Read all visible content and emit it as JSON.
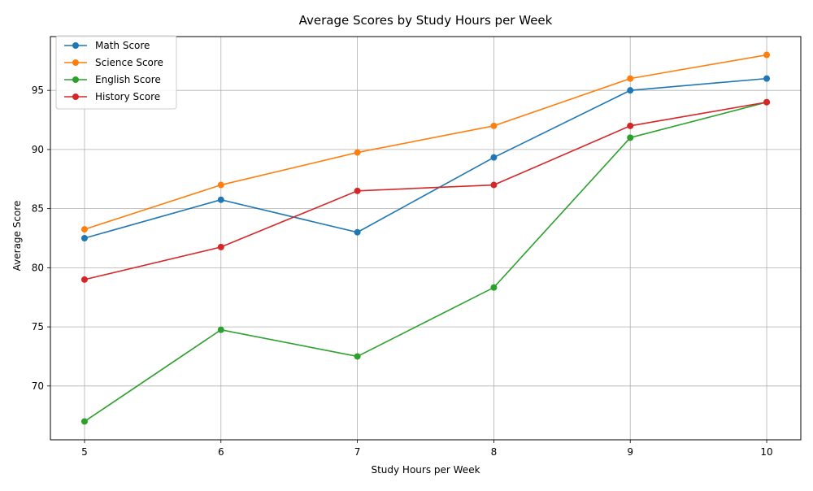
{
  "chart_data": {
    "type": "line",
    "title": "Average Scores by Study Hours per Week",
    "xlabel": "Study Hours per Week",
    "ylabel": "Average Score",
    "x": [
      5,
      6,
      7,
      8,
      9,
      10
    ],
    "xlim": [
      4.75,
      10.25
    ],
    "ylim": [
      65.45,
      99.55
    ],
    "xticks": [
      5,
      6,
      7,
      8,
      9,
      10
    ],
    "yticks": [
      70,
      75,
      80,
      85,
      90,
      95
    ],
    "grid": true,
    "legend_position": "upper-left",
    "marker": "circle",
    "series": [
      {
        "name": "Math Score",
        "color": "#1f77b4",
        "values": [
          82.5,
          85.75,
          83.0,
          89.33,
          95.0,
          96.0
        ]
      },
      {
        "name": "Science Score",
        "color": "#ff7f0e",
        "values": [
          83.25,
          87.0,
          89.75,
          92.0,
          96.0,
          98.0
        ]
      },
      {
        "name": "English Score",
        "color": "#2ca02c",
        "values": [
          67.0,
          74.75,
          72.5,
          78.33,
          91.0,
          94.0
        ]
      },
      {
        "name": "History Score",
        "color": "#d62728",
        "values": [
          79.0,
          81.75,
          86.5,
          87.0,
          92.0,
          94.0
        ]
      }
    ]
  }
}
